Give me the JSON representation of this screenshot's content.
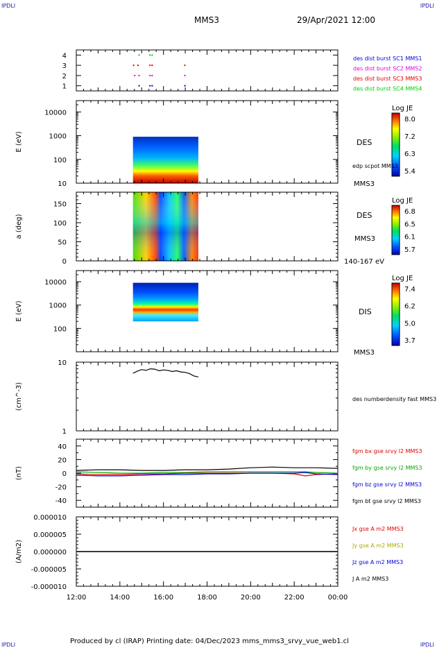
{
  "header": {
    "corner_left": "IPDLI",
    "corner_right": "IPDLI",
    "spacecraft": "MMS3",
    "datetime": "29/Apr/2021 12:00"
  },
  "footer": {
    "text": "Produced by cl (IRAP)   Printing date: 04/Dec/2023   mms_mms3_srvy_vue_web1.cl",
    "corner_left": "IPDLI",
    "corner_right": "IPDLI"
  },
  "time_axis": {
    "ticks": [
      "12:00",
      "14:00",
      "16:00",
      "18:00",
      "20:00",
      "22:00",
      "00:00"
    ]
  },
  "chart_data": [
    {
      "type": "scatter",
      "panel": "burst-availability",
      "ylabel": "",
      "yticks": [
        "1",
        "2",
        "3",
        "4"
      ],
      "ylim": [
        0.5,
        4.5
      ],
      "legend": [
        {
          "label": "des dist burst SC1 MMS1",
          "color": "#0000dd"
        },
        {
          "label": "des dist burst SC2 MMS2",
          "color": "#dd00dd"
        },
        {
          "label": "des dist burst SC3 MMS3",
          "color": "#dd0000"
        },
        {
          "label": "des dist burst SC4 MMS4",
          "color": "#00cc00"
        }
      ],
      "series": [
        {
          "name": "des dist burst SC1 MMS1",
          "level": 1,
          "hours": [
            14.85,
            15.35,
            15.45,
            16.95
          ]
        },
        {
          "name": "des dist burst SC2 MMS2",
          "level": 2,
          "hours": [
            14.65,
            14.85,
            15.35,
            15.45,
            16.95
          ]
        },
        {
          "name": "des dist burst SC3 MMS3",
          "level": 3,
          "hours": [
            14.6,
            14.8,
            15.35,
            15.45,
            16.95
          ]
        },
        {
          "name": "des dist burst SC4 MMS4",
          "level": 4,
          "hours": [
            14.85,
            15.35,
            15.45
          ]
        }
      ]
    },
    {
      "type": "heatmap",
      "panel": "des-energy-spectrogram",
      "ylabel": "E (eV)",
      "yscale": "log",
      "ylim": [
        10,
        30000
      ],
      "yticks": [
        "10",
        "100",
        "1000",
        "10000"
      ],
      "label": "DES",
      "annotation": "edp scpot MMS3",
      "spacecraft": "MMS3",
      "colorbar": {
        "title": "Log JE",
        "ticks": [
          "8.0",
          "7.2",
          "6.3",
          "5.4"
        ]
      },
      "time_range_hours": [
        14.6,
        17.6
      ],
      "energy_range_ev": [
        10,
        900
      ]
    },
    {
      "type": "heatmap",
      "panel": "des-pitch-angle",
      "ylabel": "a (deg)",
      "ylim": [
        0,
        180
      ],
      "yticks": [
        "0",
        "50",
        "100",
        "150"
      ],
      "label": "DES",
      "spacecraft": "MMS3",
      "energy_band": "140-167 eV",
      "colorbar": {
        "title": "Log JE",
        "ticks": [
          "6.8",
          "6.5",
          "6.1",
          "5.7"
        ]
      },
      "time_range_hours": [
        14.6,
        17.6
      ]
    },
    {
      "type": "heatmap",
      "panel": "dis-energy-spectrogram",
      "ylabel": "E (eV)",
      "yscale": "log",
      "ylim": [
        10,
        30000
      ],
      "yticks": [
        "100",
        "1000",
        "10000"
      ],
      "label": "DIS",
      "spacecraft": "MMS3",
      "colorbar": {
        "title": "Log JE",
        "ticks": [
          "7.4",
          "6.2",
          "5.0",
          "3.7"
        ]
      },
      "time_range_hours": [
        14.6,
        17.6
      ],
      "energy_range_ev": [
        200,
        9000
      ]
    },
    {
      "type": "line",
      "panel": "electron-density",
      "ylabel": "(cm^-3)",
      "yscale": "log",
      "ylim": [
        1,
        10
      ],
      "yticks": [
        "1",
        "10"
      ],
      "series": [
        {
          "name": "des numberdensity fast MMS3",
          "color": "#000000",
          "x": [
            14.6,
            14.8,
            15.0,
            15.2,
            15.4,
            15.6,
            15.8,
            16.0,
            16.2,
            16.4,
            16.6,
            16.8,
            17.0,
            17.2,
            17.4,
            17.6
          ],
          "y": [
            6.9,
            7.4,
            7.8,
            7.6,
            8.0,
            7.9,
            7.5,
            7.7,
            7.6,
            7.3,
            7.5,
            7.2,
            7.1,
            6.8,
            6.3,
            6.1
          ]
        }
      ]
    },
    {
      "type": "line",
      "panel": "magnetic-field",
      "ylabel": "(nT)",
      "ylim": [
        -50,
        50
      ],
      "yticks": [
        "-40",
        "-20",
        "0",
        "20",
        "40"
      ],
      "series": [
        {
          "name": "fgm bx gse srvy l2 MMS3",
          "color": "#dd0000",
          "x": [
            12,
            13,
            14,
            15,
            16,
            17,
            18,
            19,
            20,
            21,
            22,
            22.5,
            23,
            24
          ],
          "y": [
            -1,
            -2,
            -2,
            -1,
            -1,
            0,
            0,
            0,
            0,
            0,
            -1,
            -4,
            -2,
            -1
          ]
        },
        {
          "name": "fgm by gse srvy l2 MMS3",
          "color": "#00aa00",
          "x": [
            12,
            13,
            14,
            15,
            16,
            17,
            18,
            19,
            20,
            21,
            22,
            22.5,
            23,
            24
          ],
          "y": [
            2,
            1,
            0,
            0,
            1,
            1,
            2,
            2,
            2,
            2,
            2,
            2,
            1,
            0
          ]
        },
        {
          "name": "fgm bz gse srvy l2 MMS3",
          "color": "#0000dd",
          "x": [
            12,
            13,
            14,
            15,
            16,
            17,
            18,
            19,
            20,
            21,
            22,
            22.5,
            23,
            24
          ],
          "y": [
            -3,
            -4,
            -4,
            -3,
            -2,
            -2,
            -1,
            -1,
            0,
            0,
            0,
            1,
            -1,
            -2
          ]
        },
        {
          "name": "fgm bt gse srvy l2 MMS3",
          "color": "#000000",
          "x": [
            12,
            13,
            14,
            15,
            16,
            17,
            18,
            19,
            20,
            21,
            22,
            22.5,
            23,
            24
          ],
          "y": [
            4,
            5,
            5,
            4,
            4,
            5,
            5,
            6,
            8,
            9,
            8,
            8,
            8,
            7
          ]
        }
      ]
    },
    {
      "type": "line",
      "panel": "current-density",
      "ylabel": "(A/m2)",
      "ylim": [
        -1e-05,
        1e-05
      ],
      "yticks": [
        "-0.000010",
        "-0.000005",
        "0.000000",
        "0.000005",
        "0.000010"
      ],
      "series": [
        {
          "name": "Jx gse A m2 MMS3",
          "color": "#dd0000",
          "x": [
            12,
            24
          ],
          "y": [
            0,
            0
          ]
        },
        {
          "name": "Jy gse A m2 MMS3",
          "color": "#aaaa00",
          "x": [
            12,
            24
          ],
          "y": [
            0,
            0
          ]
        },
        {
          "name": "Jz gse A m2 MMS3",
          "color": "#0000dd",
          "x": [
            12,
            24
          ],
          "y": [
            0,
            0
          ]
        },
        {
          "name": "J A m2 MMS3",
          "color": "#000000",
          "x": [
            12,
            24
          ],
          "y": [
            0,
            0
          ]
        }
      ]
    }
  ]
}
